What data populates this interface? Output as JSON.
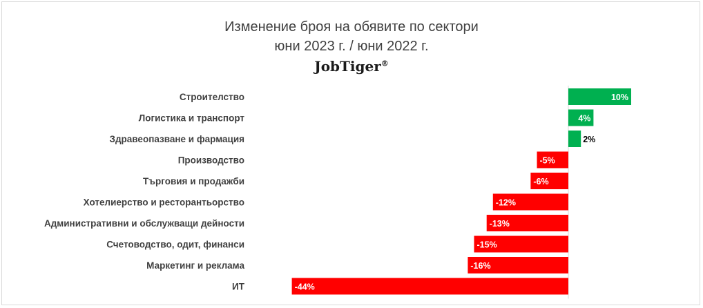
{
  "title": "Изменение броя на обявите по сектори",
  "subtitle": "юни 2023 г. / юни 2022 г.",
  "brand": {
    "name": "JobTiger",
    "mark": "®"
  },
  "colors": {
    "positive": "#00b050",
    "negative": "#ff0000",
    "axis": "#d9d9d9",
    "label_text": "#404040",
    "border": "#d9d9d9"
  },
  "chart_data": {
    "type": "bar",
    "orientation": "horizontal",
    "title": "Изменение броя на обявите по сектори",
    "subtitle": "юни 2023 г. / юни 2022 г.",
    "unit": "%",
    "grid": false,
    "legend": "none",
    "categories": [
      "Строителство",
      "Логистика и транспорт",
      "Здравеопазване и фармация",
      "Производство",
      "Търговия и продажби",
      "Хотелиерство и ресторантьорство",
      "Административни и обслужващи дейности",
      "Счетоводство, одит, финанси",
      "Маркетинг и реклама",
      "ИТ"
    ],
    "values": [
      10,
      4,
      2,
      -5,
      -6,
      -12,
      -13,
      -15,
      -16,
      -44
    ],
    "labels": [
      "10%",
      "4%",
      "2%",
      "-5%",
      "-6%",
      "-12%",
      "-13%",
      "-15%",
      "-16%",
      "-44%"
    ]
  }
}
